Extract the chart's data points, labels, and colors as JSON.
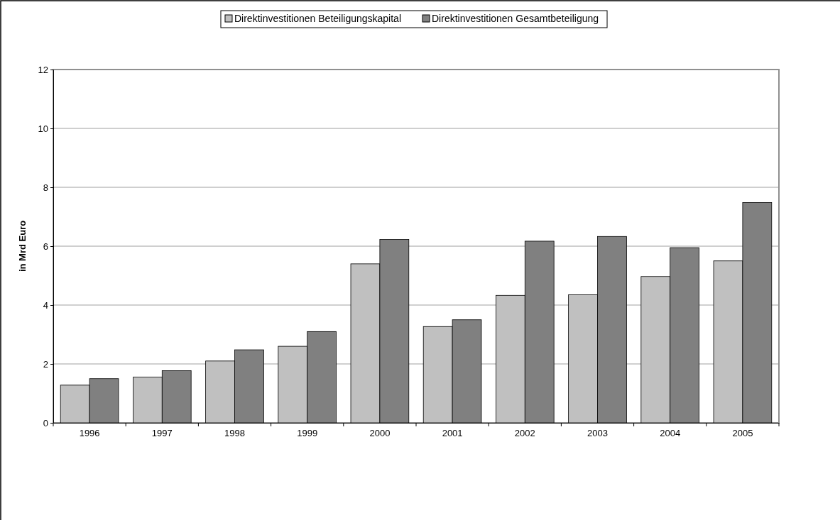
{
  "chart_data": {
    "type": "bar",
    "ylabel": "in Mrd Euro",
    "categories": [
      "1996",
      "1997",
      "1998",
      "1999",
      "2000",
      "2001",
      "2002",
      "2003",
      "2004",
      "2005"
    ],
    "series": [
      {
        "name": "Direktinvestitionen Beteiligungskapital",
        "color": "#c0c0c0",
        "values": [
          1.28,
          1.55,
          2.1,
          2.6,
          5.4,
          3.27,
          4.33,
          4.35,
          4.97,
          5.5
        ]
      },
      {
        "name": "Direktinvestitionen Gesamtbeteiligung",
        "color": "#808080",
        "values": [
          1.5,
          1.77,
          2.48,
          3.1,
          6.23,
          3.5,
          6.17,
          6.33,
          5.95,
          7.48
        ]
      }
    ],
    "ylim": [
      0,
      12
    ],
    "yticks": [
      0,
      2,
      4,
      6,
      8,
      10,
      12
    ],
    "grid": "y",
    "legend": "top"
  }
}
